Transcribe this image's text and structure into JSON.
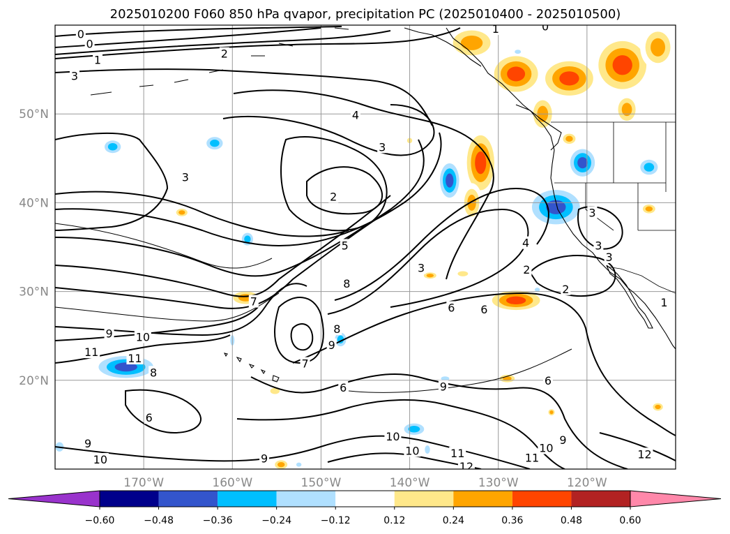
{
  "title": "2025010200 F060 850 hPa qvapor, precipitation PC (2025010400 - 2025010500)",
  "map": {
    "lon_range": [
      -180,
      -110
    ],
    "lat_range": [
      10,
      60
    ],
    "lon_ticks": [
      {
        "lon": -170,
        "label": "170°W"
      },
      {
        "lon": -160,
        "label": "160°W"
      },
      {
        "lon": -150,
        "label": "150°W"
      },
      {
        "lon": -140,
        "label": "140°W"
      },
      {
        "lon": -130,
        "label": "130°W"
      },
      {
        "lon": -120,
        "label": "120°W"
      }
    ],
    "lat_ticks": [
      {
        "lat": 50,
        "label": "50°N"
      },
      {
        "lat": 40,
        "label": "40°N"
      },
      {
        "lat": 30,
        "label": "30°N"
      },
      {
        "lat": 20,
        "label": "20°N"
      }
    ],
    "gridlines": true
  },
  "colorbar": {
    "colors": [
      "#9933cc",
      "#00008b",
      "#3355cc",
      "#00bfff",
      "#b0e0ff",
      "#ffffff",
      "#ffe88a",
      "#ffa500",
      "#ff4500",
      "#b22222",
      "#ff88aa"
    ],
    "tick_labels": [
      "−0.60",
      "−0.48",
      "−0.36",
      "−0.24",
      "−0.12",
      "0.12",
      "0.24",
      "0.36",
      "0.48",
      "0.60"
    ],
    "extend": "both"
  },
  "contour_labels": [
    {
      "text": "0",
      "lon": -177.1,
      "lat": 59.0
    },
    {
      "text": "0",
      "lon": -176.1,
      "lat": 57.9
    },
    {
      "text": "1",
      "lon": -175.2,
      "lat": 56.1
    },
    {
      "text": "2",
      "lon": -160.9,
      "lat": 56.8
    },
    {
      "text": "3",
      "lon": -177.8,
      "lat": 54.3
    },
    {
      "text": "4",
      "lon": -146.1,
      "lat": 49.9
    },
    {
      "text": "3",
      "lon": -143.1,
      "lat": 46.3
    },
    {
      "text": "3",
      "lon": -165.3,
      "lat": 42.9
    },
    {
      "text": "2",
      "lon": -148.6,
      "lat": 40.7
    },
    {
      "text": "5",
      "lon": -147.3,
      "lat": 35.2
    },
    {
      "text": "4",
      "lon": -126.9,
      "lat": 35.5
    },
    {
      "text": "3",
      "lon": -138.7,
      "lat": 32.7
    },
    {
      "text": "8",
      "lon": -147.1,
      "lat": 30.9
    },
    {
      "text": "7",
      "lon": -157.6,
      "lat": 28.9
    },
    {
      "text": "8",
      "lon": -148.2,
      "lat": 25.8
    },
    {
      "text": "9",
      "lon": -148.8,
      "lat": 24.0
    },
    {
      "text": "9",
      "lon": -173.9,
      "lat": 25.3
    },
    {
      "text": "10",
      "lon": -170.1,
      "lat": 24.9
    },
    {
      "text": "11",
      "lon": -175.9,
      "lat": 23.2
    },
    {
      "text": "11",
      "lon": -171.0,
      "lat": 22.5
    },
    {
      "text": "8",
      "lon": -168.9,
      "lat": 20.9
    },
    {
      "text": "7",
      "lon": -151.8,
      "lat": 21.9
    },
    {
      "text": "6",
      "lon": -147.5,
      "lat": 19.2
    },
    {
      "text": "9",
      "lon": -136.2,
      "lat": 19.3
    },
    {
      "text": "6",
      "lon": -124.4,
      "lat": 20.0
    },
    {
      "text": "6",
      "lon": -169.4,
      "lat": 15.8
    },
    {
      "text": "9",
      "lon": -176.3,
      "lat": 12.9
    },
    {
      "text": "10",
      "lon": -174.9,
      "lat": 11.1
    },
    {
      "text": "9",
      "lon": -156.4,
      "lat": 11.2
    },
    {
      "text": "10",
      "lon": -141.9,
      "lat": 13.7
    },
    {
      "text": "10",
      "lon": -139.7,
      "lat": 12.1
    },
    {
      "text": "11",
      "lon": -134.6,
      "lat": 11.8
    },
    {
      "text": "12",
      "lon": -133.6,
      "lat": 10.3
    },
    {
      "text": "10",
      "lon": -124.6,
      "lat": 12.4
    },
    {
      "text": "9",
      "lon": -122.7,
      "lat": 13.3
    },
    {
      "text": "11",
      "lon": -126.2,
      "lat": 11.3
    },
    {
      "text": "12",
      "lon": -113.5,
      "lat": 11.7
    },
    {
      "text": "6",
      "lon": -135.3,
      "lat": 28.2
    },
    {
      "text": "6",
      "lon": -131.6,
      "lat": 28.0
    },
    {
      "text": "2",
      "lon": -126.8,
      "lat": 32.5
    },
    {
      "text": "2",
      "lon": -122.4,
      "lat": 30.3
    },
    {
      "text": "3",
      "lon": -119.4,
      "lat": 38.9
    },
    {
      "text": "3",
      "lon": -118.7,
      "lat": 35.2
    },
    {
      "text": "3",
      "lon": -117.5,
      "lat": 33.9
    },
    {
      "text": "1",
      "lon": -111.3,
      "lat": 28.8
    },
    {
      "text": "1",
      "lon": -130.3,
      "lat": 59.6
    },
    {
      "text": "0",
      "lon": -124.7,
      "lat": 59.9
    }
  ],
  "precip_blobs": [
    {
      "lon": -128,
      "lat": 54.5,
      "rx": 3.2,
      "ry": 2.6,
      "v": 0.45
    },
    {
      "lon": -122,
      "lat": 54.0,
      "rx": 3.5,
      "ry": 2.5,
      "v": 0.4
    },
    {
      "lon": -116,
      "lat": 55.5,
      "rx": 3.5,
      "ry": 3.5,
      "v": 0.38
    },
    {
      "lon": -112,
      "lat": 57.5,
      "rx": 2.0,
      "ry": 2.5,
      "v": 0.36
    },
    {
      "lon": -133,
      "lat": 58.0,
      "rx": 3.0,
      "ry": 2.0,
      "v": 0.3
    },
    {
      "lon": -132,
      "lat": 44.5,
      "rx": 2.0,
      "ry": 4.0,
      "v": 0.4
    },
    {
      "lon": -133,
      "lat": 40.0,
      "rx": 1.2,
      "ry": 2.2,
      "v": 0.25
    },
    {
      "lon": -125,
      "lat": 50.0,
      "rx": 1.5,
      "ry": 2.2,
      "v": 0.3
    },
    {
      "lon": -115.5,
      "lat": 50.5,
      "rx": 1.4,
      "ry": 1.8,
      "v": 0.3
    },
    {
      "lon": -128,
      "lat": 29.0,
      "rx": 3.5,
      "ry": 1.4,
      "v": 0.4
    },
    {
      "lon": -129,
      "lat": 20.2,
      "rx": 1.2,
      "ry": 0.6,
      "v": 0.25
    },
    {
      "lon": -158.5,
      "lat": 29.3,
      "rx": 2.0,
      "ry": 1.0,
      "v": 0.3
    },
    {
      "lon": -137.7,
      "lat": 31.8,
      "rx": 1.0,
      "ry": 0.5,
      "v": 0.25
    },
    {
      "lon": -113,
      "lat": 39.3,
      "rx": 1.0,
      "ry": 0.7,
      "v": 0.25
    },
    {
      "lon": -165.7,
      "lat": 38.9,
      "rx": 0.9,
      "ry": 0.6,
      "v": 0.25
    },
    {
      "lon": -154.5,
      "lat": 10.5,
      "rx": 1.0,
      "ry": 0.7,
      "v": 0.25
    },
    {
      "lon": -155.2,
      "lat": 18.8,
      "rx": 0.9,
      "ry": 0.6,
      "v": 0.2
    },
    {
      "lon": -112,
      "lat": 17.0,
      "rx": 0.8,
      "ry": 0.6,
      "v": 0.25
    },
    {
      "lon": -124,
      "lat": 16.4,
      "rx": 0.5,
      "ry": 0.5,
      "v": 0.25
    },
    {
      "lon": -122,
      "lat": 47.2,
      "rx": 1.0,
      "ry": 0.8,
      "v": 0.25
    },
    {
      "lon": -140,
      "lat": 47.0,
      "rx": 0.5,
      "ry": 0.5,
      "v": 0.2
    },
    {
      "lon": -134,
      "lat": 32.0,
      "rx": 1.0,
      "ry": 0.5,
      "v": 0.2
    },
    {
      "lon": -123.5,
      "lat": 39.5,
      "rx": 3.5,
      "ry": 2.5,
      "v": -0.48
    },
    {
      "lon": -120.5,
      "lat": 44.5,
      "rx": 1.8,
      "ry": 2.0,
      "v": -0.4
    },
    {
      "lon": -135.5,
      "lat": 42.5,
      "rx": 1.4,
      "ry": 2.5,
      "v": -0.4
    },
    {
      "lon": -113,
      "lat": 44.0,
      "rx": 1.4,
      "ry": 1.2,
      "v": -0.3
    },
    {
      "lon": -172,
      "lat": 21.5,
      "rx": 4.0,
      "ry": 1.6,
      "v": -0.38
    },
    {
      "lon": -173.5,
      "lat": 46.3,
      "rx": 1.3,
      "ry": 1.0,
      "v": -0.3
    },
    {
      "lon": -162,
      "lat": 46.7,
      "rx": 1.3,
      "ry": 1.0,
      "v": -0.28
    },
    {
      "lon": -147.8,
      "lat": 24.6,
      "rx": 0.9,
      "ry": 1.1,
      "v": -0.28
    },
    {
      "lon": -158.3,
      "lat": 35.9,
      "rx": 0.9,
      "ry": 1.0,
      "v": -0.26
    },
    {
      "lon": -139.5,
      "lat": 14.5,
      "rx": 1.6,
      "ry": 0.9,
      "v": -0.26
    },
    {
      "lon": -179.5,
      "lat": 12.5,
      "rx": 0.8,
      "ry": 0.9,
      "v": -0.22
    },
    {
      "lon": -138,
      "lat": 12.2,
      "rx": 0.5,
      "ry": 0.8,
      "v": -0.2
    },
    {
      "lon": -125.6,
      "lat": 30.2,
      "rx": 0.5,
      "ry": 0.4,
      "v": -0.2
    },
    {
      "lon": -127.8,
      "lat": 57.0,
      "rx": 0.6,
      "ry": 0.4,
      "v": -0.2
    },
    {
      "lon": -136,
      "lat": 20.2,
      "rx": 0.8,
      "ry": 0.4,
      "v": -0.2
    },
    {
      "lon": -152.5,
      "lat": 10.5,
      "rx": 0.5,
      "ry": 0.4,
      "v": -0.18
    },
    {
      "lon": -160,
      "lat": 24.5,
      "rx": 0.4,
      "ry": 1.0,
      "v": -0.15
    }
  ]
}
